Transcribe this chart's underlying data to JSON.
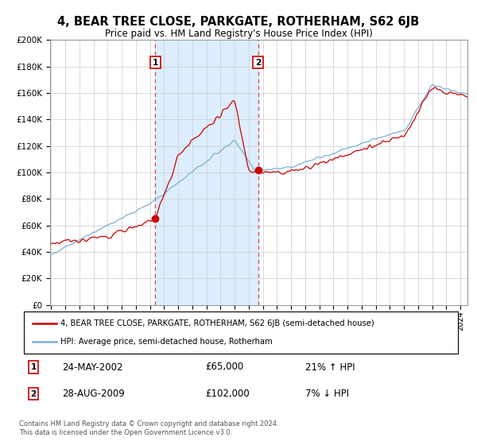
{
  "title": "4, BEAR TREE CLOSE, PARKGATE, ROTHERHAM, S62 6JB",
  "subtitle": "Price paid vs. HM Land Registry's House Price Index (HPI)",
  "legend_line1": "4, BEAR TREE CLOSE, PARKGATE, ROTHERHAM, S62 6JB (semi-detached house)",
  "legend_line2": "HPI: Average price, semi-detached house, Rotherham",
  "annotation1_date": "24-MAY-2002",
  "annotation1_price": "£65,000",
  "annotation1_hpi": "21% ↑ HPI",
  "annotation2_date": "28-AUG-2009",
  "annotation2_price": "£102,000",
  "annotation2_hpi": "7% ↓ HPI",
  "footer": "Contains HM Land Registry data © Crown copyright and database right 2024.\nThis data is licensed under the Open Government Licence v3.0.",
  "sale1_year": 2002.38,
  "sale1_price": 65000,
  "sale2_year": 2009.66,
  "sale2_price": 102000,
  "red_color": "#cc0000",
  "blue_color": "#7ab0d4",
  "shade_color": "#ddeeff",
  "plot_bg": "#ffffff",
  "grid_color": "#cccccc",
  "ylim": [
    0,
    200000
  ],
  "ytick_vals": [
    0,
    20000,
    40000,
    60000,
    80000,
    100000,
    120000,
    140000,
    160000,
    180000,
    200000
  ],
  "ytick_labels": [
    "£0",
    "£20K",
    "£40K",
    "£60K",
    "£80K",
    "£100K",
    "£120K",
    "£140K",
    "£160K",
    "£180K",
    "£200K"
  ]
}
